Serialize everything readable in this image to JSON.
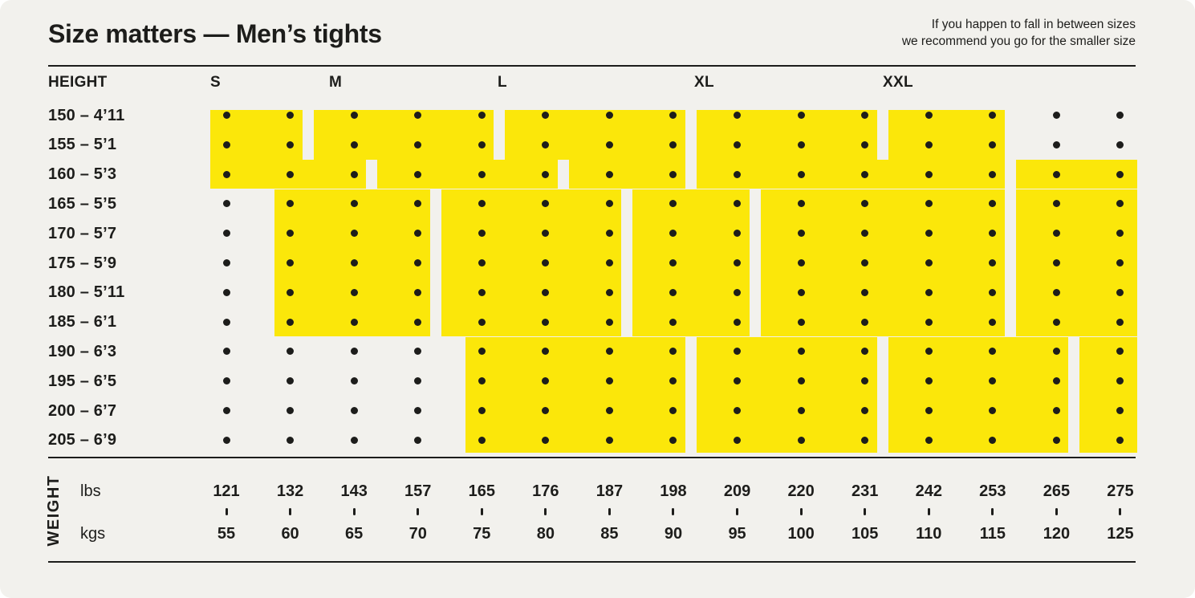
{
  "colors": {
    "yellow": "#FBE70A",
    "background": "#F2F1ED",
    "ink": "#1D1D1B"
  },
  "header": {
    "title": "Size matters — Men’s tights",
    "note_line1": "If you happen to fall in between sizes",
    "note_line2": "we recommend you go for the smaller size"
  },
  "axis": {
    "height_label": "HEIGHT",
    "weight_label": "WEIGHT",
    "unit_top": "lbs",
    "unit_bottom": "kgs"
  },
  "chart_data": {
    "type": "heatmap",
    "title": "Size matters — Men’s tights",
    "sizes": [
      "S",
      "M",
      "L",
      "XL",
      "XXL"
    ],
    "heights": [
      "150 – 4’11",
      "155 – 5’1",
      "160 – 5’3",
      "165 – 5’5",
      "170 – 5’7",
      "175 – 5’9",
      "180 – 5’11",
      "185 – 6’1",
      "190 – 6’3",
      "195 – 6’5",
      "200 – 6’7",
      "205 – 6’9"
    ],
    "weights_lbs": [
      121,
      132,
      143,
      157,
      165,
      176,
      187,
      198,
      209,
      220,
      231,
      242,
      253,
      265,
      275
    ],
    "weights_kgs": [
      55,
      60,
      65,
      70,
      75,
      80,
      85,
      90,
      95,
      100,
      105,
      110,
      115,
      120,
      125
    ],
    "coverage": [
      {
        "height": "150 – 4’11",
        "S": [
          1,
          2
        ],
        "M": [
          3,
          5
        ],
        "L": [
          6,
          8
        ],
        "XL": [
          9,
          11
        ],
        "XXL": [
          12,
          13
        ]
      },
      {
        "height": "155 – 5’1",
        "S": [
          1,
          2
        ],
        "M": [
          3,
          5
        ],
        "L": [
          6,
          8
        ],
        "XL": [
          9,
          11
        ],
        "XXL": [
          12,
          13
        ]
      },
      {
        "height": "160 – 5’3",
        "S": [
          1,
          3
        ],
        "M": [
          4,
          6
        ],
        "L": [
          7,
          8
        ],
        "XL": [
          9,
          13
        ],
        "XXL": [
          14,
          15
        ]
      },
      {
        "height": "165 – 5’5",
        "S": [
          2,
          4
        ],
        "M": [
          5,
          7
        ],
        "L": [
          8,
          9
        ],
        "XL": [
          10,
          13
        ],
        "XXL": [
          14,
          15
        ]
      },
      {
        "height": "170 – 5’7",
        "S": [
          2,
          4
        ],
        "M": [
          5,
          7
        ],
        "L": [
          8,
          9
        ],
        "XL": [
          10,
          13
        ],
        "XXL": [
          14,
          15
        ]
      },
      {
        "height": "175 – 5’9",
        "S": [
          2,
          4
        ],
        "M": [
          5,
          7
        ],
        "L": [
          8,
          9
        ],
        "XL": [
          10,
          13
        ],
        "XXL": [
          14,
          15
        ]
      },
      {
        "height": "180 – 5’11",
        "S": [
          2,
          4
        ],
        "M": [
          5,
          7
        ],
        "L": [
          8,
          9
        ],
        "XL": [
          10,
          13
        ],
        "XXL": [
          14,
          15
        ]
      },
      {
        "height": "185 – 6’1",
        "S": [
          2,
          4
        ],
        "M": [
          5,
          7
        ],
        "L": [
          8,
          9
        ],
        "XL": [
          10,
          13
        ],
        "XXL": [
          14,
          15
        ]
      },
      {
        "height": "190 – 6’3",
        "M": [
          5,
          8
        ],
        "L": [
          9,
          11
        ],
        "XL": [
          12,
          14
        ],
        "XXL": [
          15,
          15
        ]
      },
      {
        "height": "195 – 6’5",
        "M": [
          5,
          8
        ],
        "L": [
          9,
          11
        ],
        "XL": [
          12,
          14
        ],
        "XXL": [
          15,
          15
        ]
      },
      {
        "height": "200 – 6’7",
        "M": [
          5,
          8
        ],
        "L": [
          9,
          11
        ],
        "XL": [
          12,
          14
        ],
        "XXL": [
          15,
          15
        ]
      },
      {
        "height": "205 – 6’9",
        "M": [
          5,
          8
        ],
        "L": [
          9,
          11
        ],
        "XL": [
          12,
          14
        ],
        "XXL": [
          15,
          15
        ]
      }
    ]
  }
}
